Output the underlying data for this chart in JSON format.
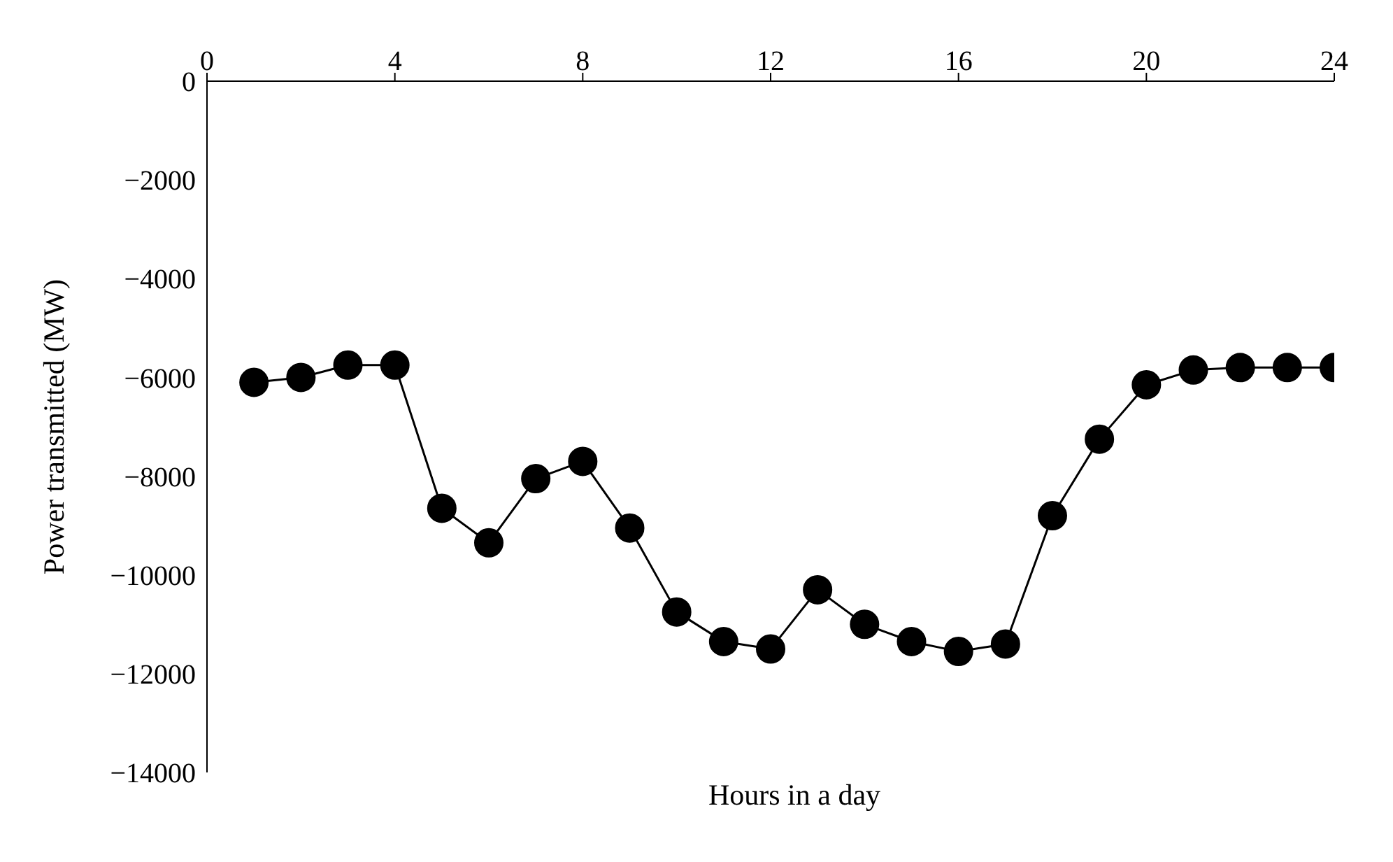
{
  "chart_data": {
    "type": "line",
    "xlabel": "Hours in a day",
    "ylabel": "Power transmitted (MW)",
    "x": [
      1,
      2,
      3,
      4,
      5,
      6,
      7,
      8,
      9,
      10,
      11,
      12,
      13,
      14,
      15,
      16,
      17,
      18,
      19,
      20,
      21,
      22,
      23,
      24
    ],
    "series": [
      {
        "color": "#000000",
        "values": [
          -6100,
          -6000,
          -5750,
          -5750,
          -8650,
          -9350,
          -8050,
          -7700,
          -9050,
          -10750,
          -11350,
          -11500,
          -10300,
          -11000,
          -11350,
          -11550,
          -11400,
          -8800,
          -7250,
          -6150,
          -5850,
          -5800,
          -5800,
          -5800
        ]
      }
    ],
    "xlim": [
      0,
      24
    ],
    "xticks": [
      0,
      4,
      8,
      12,
      16,
      20,
      24
    ],
    "ylim": [
      -14000,
      0
    ],
    "yticks": [
      {
        "value": -14000,
        "label": "−14000"
      },
      {
        "value": -12000,
        "label": "−12000"
      },
      {
        "value": -10000,
        "label": "−10000"
      },
      {
        "value": -8000,
        "label": "−8000"
      },
      {
        "value": -6000,
        "label": "−6000"
      },
      {
        "value": -4000,
        "label": "−4000"
      },
      {
        "value": -2000,
        "label": "−2000"
      },
      0
    ],
    "grid": false,
    "legend": false,
    "marker": "circle",
    "line_style": "solid"
  }
}
